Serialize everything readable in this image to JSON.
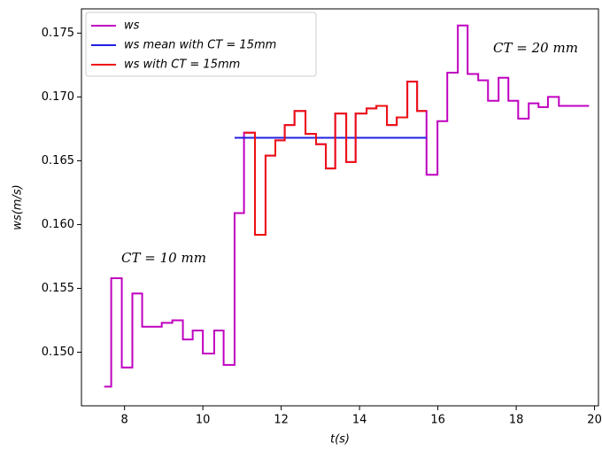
{
  "chart_data": {
    "type": "step-line",
    "xlabel": "t(s)",
    "ylabel": "ws(m/s)",
    "xlim": [
      6.9,
      20.1
    ],
    "xticks": [
      8,
      10,
      12,
      14,
      16,
      18,
      20
    ],
    "ylim": [
      0.1458,
      0.1769
    ],
    "yticks": [
      {
        "value": 0.15,
        "label": "0.150"
      },
      0.155,
      {
        "value": 0.16,
        "label": "0.160"
      },
      0.165,
      {
        "value": 0.17,
        "label": "0.170"
      },
      0.175
    ],
    "legend": "upper left",
    "annotations": [
      "CT = 10 mm",
      "CT = 20 mm"
    ],
    "series": [
      {
        "name": "ws",
        "color": "#c000c0",
        "x": [
          7.48,
          7.66,
          7.93,
          8.2,
          8.45,
          8.95,
          9.22,
          9.49,
          9.74,
          10.0,
          10.29,
          10.53,
          10.81,
          11.05,
          11.33,
          11.6,
          11.85,
          12.09,
          12.34,
          12.62,
          12.89,
          13.14,
          13.38,
          13.66,
          13.9,
          14.18,
          14.43,
          14.7,
          14.95,
          15.22,
          15.47,
          15.71,
          15.99,
          16.24,
          16.51,
          16.76,
          17.03,
          17.28,
          17.55,
          17.8,
          18.05,
          18.32,
          18.57,
          18.81,
          19.09,
          19.86
        ],
        "values": [
          0.1473,
          0.1558,
          0.1488,
          0.1546,
          0.152,
          0.1523,
          0.1525,
          0.151,
          0.1517,
          0.1499,
          0.1517,
          0.149,
          0.1609,
          0.1672,
          0.1592,
          0.1654,
          0.1666,
          0.1678,
          0.1689,
          0.1671,
          0.1663,
          0.1644,
          0.1687,
          0.1649,
          0.1687,
          0.1691,
          0.1693,
          0.1678,
          0.1684,
          0.1712,
          0.1689,
          0.1639,
          0.1681,
          0.1719,
          0.1756,
          0.1718,
          0.1713,
          0.1697,
          0.1715,
          0.1697,
          0.1683,
          0.1695,
          0.1692,
          0.17,
          0.1693,
          0.1693
        ]
      },
      {
        "name": "ws mean with CT = 15mm",
        "color": "#2020e0",
        "x": [
          10.81,
          15.71
        ],
        "values": [
          0.1668,
          0.1668
        ]
      },
      {
        "name": "ws with CT = 15mm",
        "color": "#ee1111",
        "x": [
          11.05,
          11.33,
          11.6,
          11.85,
          12.09,
          12.34,
          12.62,
          12.89,
          13.14,
          13.38,
          13.66,
          13.9,
          14.18,
          14.43,
          14.7,
          14.95,
          15.22,
          15.47,
          15.71
        ],
        "values": [
          0.1672,
          0.1592,
          0.1654,
          0.1666,
          0.1678,
          0.1689,
          0.1671,
          0.1663,
          0.1644,
          0.1687,
          0.1649,
          0.1687,
          0.1691,
          0.1693,
          0.1678,
          0.1684,
          0.1712,
          0.1689,
          0.1689
        ]
      }
    ]
  }
}
